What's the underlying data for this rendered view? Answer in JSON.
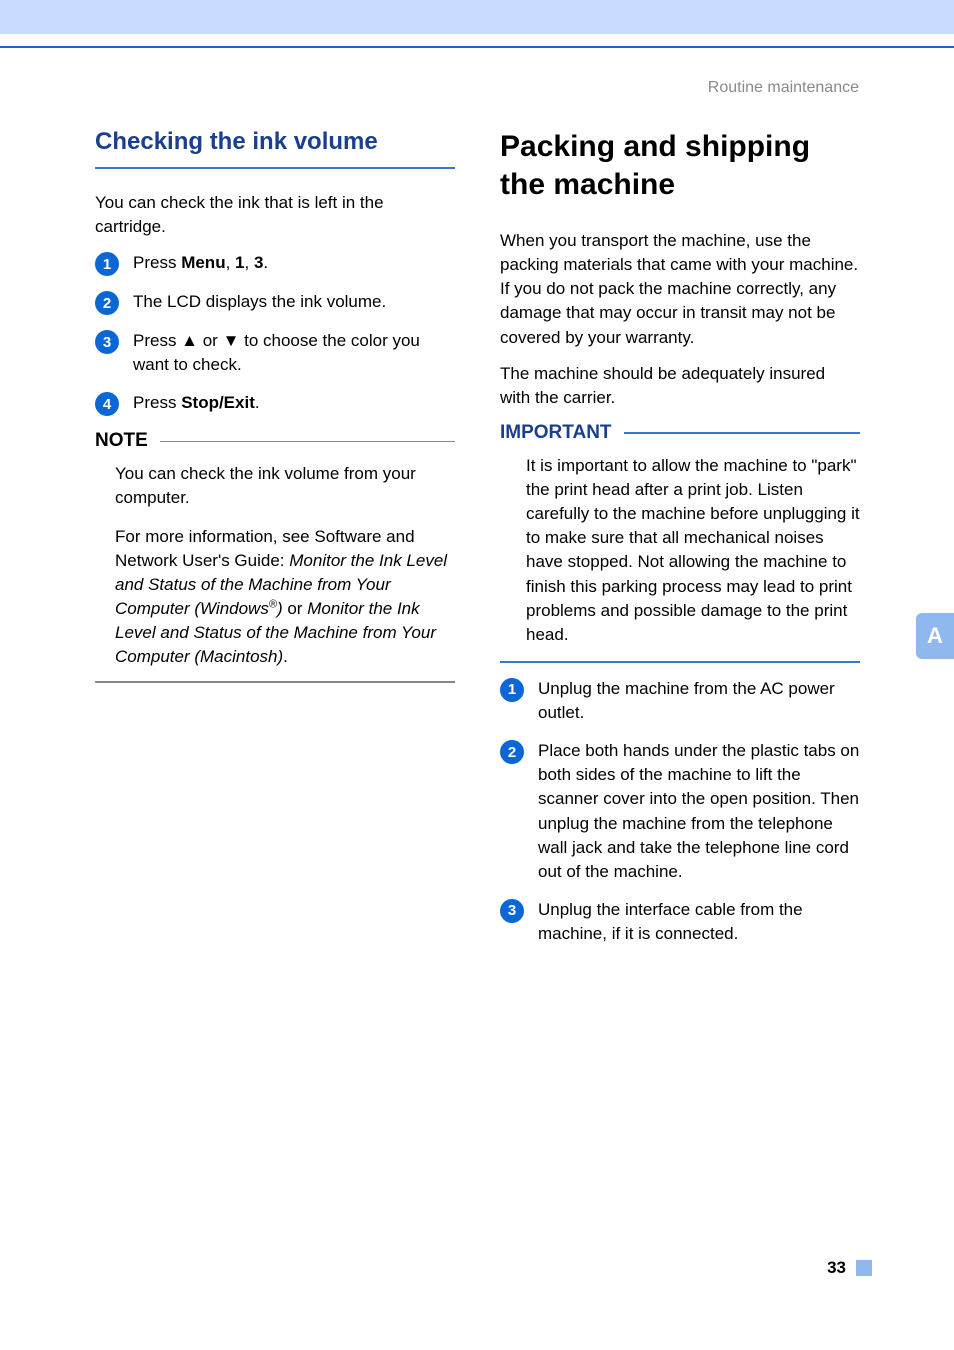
{
  "header": {
    "section_label": "Routine maintenance"
  },
  "side_tab": {
    "label": "A"
  },
  "page_number": "33",
  "colors": {
    "top_band": "#c9dcff",
    "accent_rule": "#1d62c8",
    "heading_blue": "#1a3f8f",
    "h2_underline": "#3a74d8",
    "bullet_bg": "#0b67d6",
    "bullet_text": "#ffffff",
    "note_rule": "#888888",
    "side_tab_bg": "#8fb8ef",
    "header_text": "#8a8a8a",
    "body_text": "#000000",
    "page_bg": "#ffffff"
  },
  "typography": {
    "font_family": "Arial",
    "h1_size_pt": 22,
    "h2_size_pt": 18,
    "body_size_pt": 13,
    "note_head_size_pt": 14
  },
  "left": {
    "h2": "Checking the ink volume",
    "intro": "You can check the ink that is left in the cartridge.",
    "steps": [
      {
        "num": "1",
        "pre": "Press ",
        "bold1": "Menu",
        "mid": ", ",
        "bold2": "1",
        "mid2": ", ",
        "bold3": "3",
        "post": "."
      },
      {
        "num": "2",
        "plain": "The LCD displays the ink volume."
      },
      {
        "num": "3",
        "plain": "Press ▲ or ▼ to choose the color you want to check."
      },
      {
        "num": "4",
        "pre": "Press ",
        "bold1": "Stop/Exit",
        "post": "."
      }
    ],
    "note": {
      "title": "NOTE",
      "p1": "You can check the ink volume from your computer.",
      "p2_pre": "For more information, see Software and Network User's Guide: ",
      "p2_it1": "Monitor the Ink Level and Status of the Machine from Your Computer (Windows",
      "p2_sup": "®",
      "p2_it1_close": ")",
      "p2_mid": " or ",
      "p2_it2": "Monitor the Ink Level and Status of the Machine from Your Computer (Macintosh)",
      "p2_post": "."
    }
  },
  "right": {
    "h1": "Packing and shipping the machine",
    "p1": "When you transport the machine, use the packing materials that came with your machine. If you do not pack the machine correctly, any damage that may occur in transit may not be covered by your warranty.",
    "p2": "The machine should be adequately insured with the carrier.",
    "important": {
      "title": "IMPORTANT",
      "body": "It is important to allow the machine to \"park\" the print head after a print job. Listen carefully to the machine before unplugging it to make sure that all mechanical noises have stopped. Not allowing the machine to finish this parking process may lead to print problems and possible damage to the print head."
    },
    "steps": [
      {
        "num": "1",
        "plain": "Unplug the machine from the AC power outlet."
      },
      {
        "num": "2",
        "plain": "Place both hands under the plastic tabs on both sides of the machine to lift the scanner cover into the open position. Then unplug the machine from the telephone wall jack and take the telephone line cord out of the machine."
      },
      {
        "num": "3",
        "plain": "Unplug the interface cable from the machine, if it is connected."
      }
    ]
  }
}
